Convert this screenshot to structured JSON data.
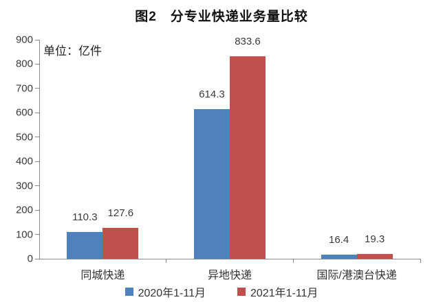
{
  "figure": {
    "title": "图2　分专业快递业务量比较",
    "unit_label": "单位：亿件"
  },
  "chart_data": {
    "type": "bar",
    "title": "图2 分专业快递业务量比较",
    "unit": "亿件",
    "categories": [
      "同城快递",
      "异地快递",
      "国际/港澳台快递"
    ],
    "series": [
      {
        "name": "2020年1-11月",
        "color": "#4F81BD",
        "values": [
          110.3,
          614.3,
          16.4
        ]
      },
      {
        "name": "2021年1-11月",
        "color": "#C0504D",
        "values": [
          127.6,
          833.6,
          19.3
        ]
      }
    ],
    "ylim": [
      0,
      900
    ],
    "ytick_step": 100,
    "grid": false,
    "legend_position": "bottom",
    "value_labels": true
  }
}
